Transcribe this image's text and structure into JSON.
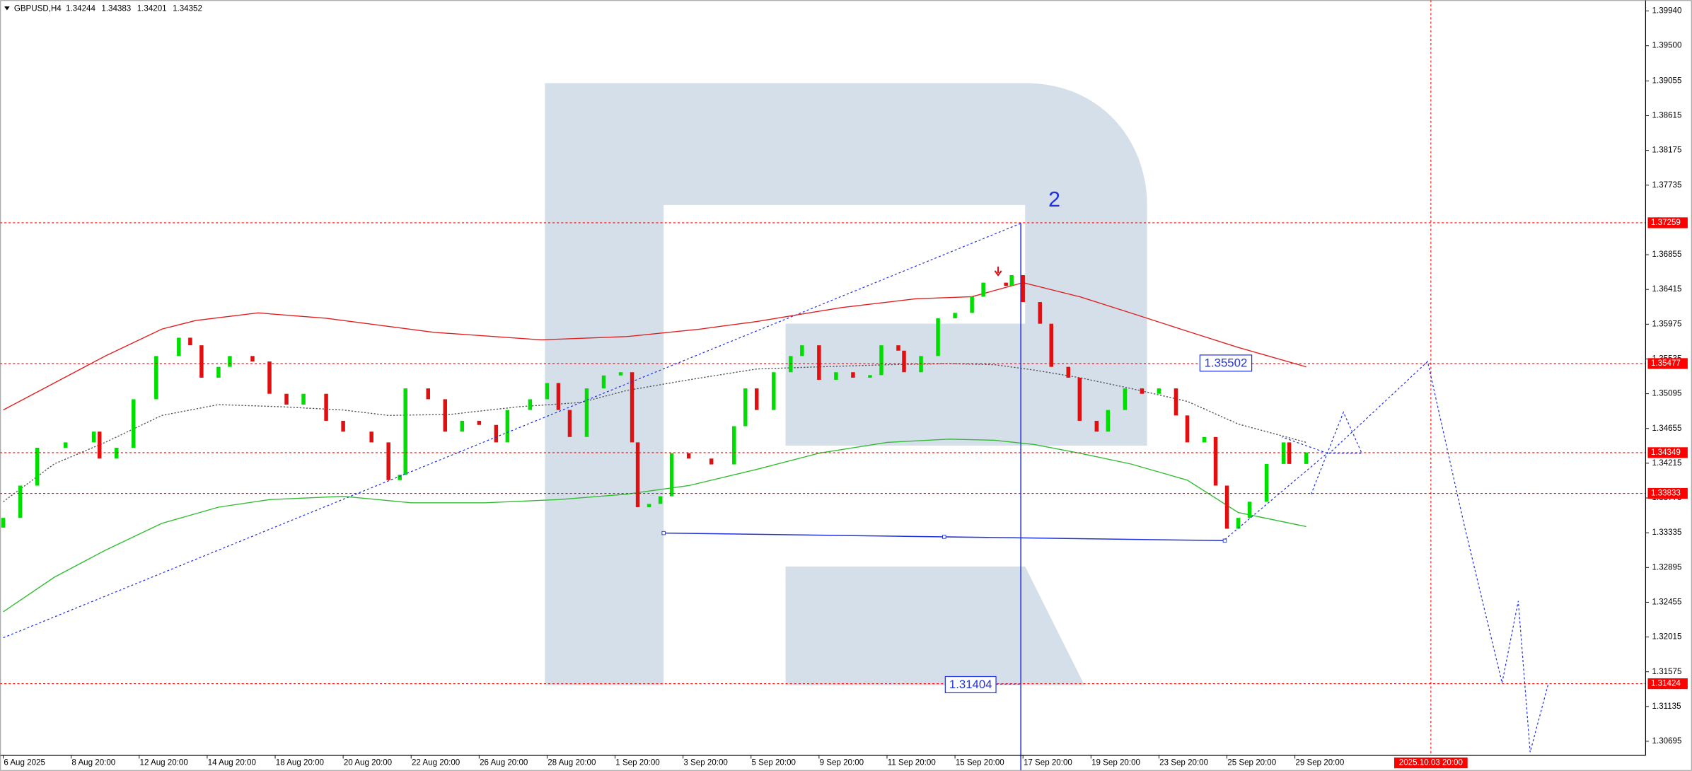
{
  "header": {
    "symbol": "GBPUSD,H4",
    "ohlc": [
      1.34244,
      1.34383,
      1.34201,
      1.34352
    ]
  },
  "chart_data": {
    "type": "candlestick",
    "x": [
      0,
      3,
      6,
      11,
      16,
      17,
      20,
      23,
      27,
      31,
      33,
      35,
      38,
      40,
      44,
      47,
      50,
      53,
      57,
      60,
      65,
      68,
      70,
      71,
      75,
      78,
      81,
      84,
      87,
      89,
      93,
      96,
      98,
      100,
      103,
      106,
      109,
      111,
      112,
      114,
      116,
      118,
      121,
      125,
      129,
      131,
      133,
      136,
      139,
      141,
      144,
      147,
      150,
      153,
      155,
      158,
      159,
      162,
      165,
      168,
      171,
      173,
      177,
      178,
      180,
      183,
      185,
      188,
      190,
      193,
      195,
      198,
      201,
      204,
      207,
      209,
      212,
      214,
      216,
      218,
      220,
      223,
      226,
      227,
      230
    ],
    "open": [
      1.334,
      1.33523,
      1.33932,
      1.34411,
      1.34479,
      1.34615,
      1.34274,
      1.34411,
      1.35025,
      1.35572,
      1.35804,
      1.35708,
      1.35298,
      1.35435,
      1.35572,
      1.35503,
      1.35094,
      1.34957,
      1.35094,
      1.34752,
      1.34615,
      1.34479,
      1.34001,
      1.34069,
      1.35162,
      1.35025,
      1.34615,
      1.34752,
      1.347,
      1.34479,
      1.34889,
      1.35025,
      1.3523,
      1.34889,
      1.34547,
      1.35162,
      1.35326,
      1.35367,
      1.34479,
      1.33659,
      1.337,
      1.33796,
      1.34342,
      1.34274,
      1.342,
      1.34684,
      1.35162,
      1.34889,
      1.35367,
      1.35572,
      1.35708,
      1.35271,
      1.35367,
      1.35298,
      1.3533,
      1.35708,
      1.3564,
      1.35367,
      1.35572,
      1.3605,
      1.36118,
      1.36323,
      1.36501,
      1.3646,
      1.36596,
      1.36255,
      1.35981,
      1.35435,
      1.35298,
      1.34752,
      1.34615,
      1.34889,
      1.35162,
      1.35094,
      1.35162,
      1.3482,
      1.34479,
      1.34547,
      1.33932,
      1.33386,
      1.33523,
      1.33728,
      1.34206,
      1.34479,
      1.34206
    ],
    "close": [
      1.33523,
      1.33932,
      1.34411,
      1.34479,
      1.34615,
      1.34274,
      1.34411,
      1.35025,
      1.35572,
      1.35804,
      1.35708,
      1.35298,
      1.35435,
      1.35572,
      1.35503,
      1.35094,
      1.34957,
      1.35094,
      1.34752,
      1.34615,
      1.34479,
      1.34001,
      1.34069,
      1.35162,
      1.35025,
      1.34615,
      1.34752,
      1.347,
      1.34479,
      1.34889,
      1.35025,
      1.3523,
      1.34889,
      1.34547,
      1.35162,
      1.35326,
      1.35367,
      1.34479,
      1.33659,
      1.337,
      1.33796,
      1.34342,
      1.34274,
      1.342,
      1.34684,
      1.35162,
      1.34889,
      1.35367,
      1.35572,
      1.35708,
      1.35271,
      1.35367,
      1.35298,
      1.3533,
      1.35708,
      1.3564,
      1.35367,
      1.35572,
      1.3605,
      1.36118,
      1.36323,
      1.36501,
      1.3646,
      1.36596,
      1.36255,
      1.35981,
      1.35435,
      1.35298,
      1.34752,
      1.34615,
      1.34889,
      1.35162,
      1.35094,
      1.35162,
      1.3482,
      1.34479,
      1.34547,
      1.33932,
      1.33386,
      1.33523,
      1.33728,
      1.34206,
      1.34479,
      1.34206,
      1.34352
    ],
    "up_color": "#00dd00",
    "down_color": "#e01010",
    "overlays": [
      {
        "color": "#e02020",
        "style": "solid",
        "x": [
          0,
          9,
          18,
          28,
          34,
          45,
          57,
          76,
          95,
          110,
          123,
          133,
          148,
          161,
          171,
          180,
          190,
          199,
          209,
          218,
          230
        ],
        "values": [
          1.34889,
          1.3523,
          1.35572,
          1.35913,
          1.36022,
          1.36118,
          1.3605,
          1.35872,
          1.35777,
          1.35818,
          1.35913,
          1.36009,
          1.36186,
          1.36296,
          1.36323,
          1.36501,
          1.36323,
          1.36118,
          1.35886,
          1.35681,
          1.35435
        ]
      },
      {
        "color": "#33bb33",
        "style": "solid",
        "x": [
          0,
          9,
          18,
          28,
          38,
          47,
          60,
          72,
          85,
          98,
          110,
          121,
          133,
          144,
          156,
          167,
          175,
          182,
          190,
          199,
          209,
          218,
          230
        ],
        "values": [
          1.32334,
          1.32771,
          1.33113,
          1.33454,
          1.33659,
          1.33755,
          1.33796,
          1.33714,
          1.33714,
          1.33755,
          1.33823,
          1.33932,
          1.34137,
          1.34342,
          1.34479,
          1.3452,
          1.34506,
          1.34452,
          1.34342,
          1.34206,
          1.34001,
          1.33591,
          1.33413
        ]
      },
      {
        "color": "#555555",
        "style": "dotted",
        "x": [
          0,
          9,
          18,
          28,
          38,
          49,
          60,
          68,
          79,
          91,
          102,
          110,
          121,
          133,
          144,
          156,
          167,
          175,
          182,
          190,
          199,
          209,
          218,
          230
        ],
        "values": [
          1.33728,
          1.34206,
          1.34479,
          1.3482,
          1.34957,
          1.3493,
          1.34889,
          1.3482,
          1.34834,
          1.3493,
          1.34984,
          1.35135,
          1.35271,
          1.35408,
          1.35435,
          1.35462,
          1.35476,
          1.35462,
          1.35394,
          1.35298,
          1.35162,
          1.34998,
          1.34711,
          1.34479
        ]
      }
    ],
    "levels": [
      1.37259,
      1.35477,
      1.34349,
      1.33833,
      1.31424
    ],
    "level_color": "#ff0000",
    "xlim": [
      -0.57,
      289.9
    ],
    "ylim": [
      1.30517,
      1.40079
    ],
    "yticks": [
      {
        "value": 1.3994,
        "label": "1.39940"
      },
      {
        "value": 1.395,
        "label": "1.39500"
      },
      1.39055,
      1.38615,
      1.38175,
      1.37735,
      1.36855,
      1.36415,
      1.35975,
      1.35535,
      1.35095,
      1.34655,
      1.34215,
      1.33775,
      1.33335,
      1.32895,
      1.32455,
      1.32015,
      1.31575,
      1.31135,
      1.30695
    ],
    "xticks": [
      {
        "value": 0,
        "label": "6 Aug 2025"
      },
      {
        "value": 12,
        "label": "8 Aug 20:00"
      },
      {
        "value": 24,
        "label": "12 Aug 20:00"
      },
      {
        "value": 36,
        "label": "14 Aug 20:00"
      },
      {
        "value": 48,
        "label": "18 Aug 20:00"
      },
      {
        "value": 60,
        "label": "20 Aug 20:00"
      },
      {
        "value": 72,
        "label": "22 Aug 20:00"
      },
      {
        "value": 84,
        "label": "26 Aug 20:00"
      },
      {
        "value": 96,
        "label": "28 Aug 20:00"
      },
      {
        "value": 108,
        "label": "1 Sep 20:00"
      },
      {
        "value": 120,
        "label": "3 Sep 20:00"
      },
      {
        "value": 132,
        "label": "5 Sep 20:00"
      },
      {
        "value": 144,
        "label": "9 Sep 20:00"
      },
      {
        "value": 156,
        "label": "11 Sep 20:00"
      },
      {
        "value": 168,
        "label": "15 Sep 20:00"
      },
      {
        "value": 180,
        "label": "17 Sep 20:00"
      },
      {
        "value": 192,
        "label": "19 Sep 20:00"
      },
      {
        "value": 204,
        "label": "23 Sep 20:00"
      },
      {
        "value": 216,
        "label": "25 Sep 20:00"
      },
      {
        "value": 228,
        "label": "29 Sep 20:00"
      }
    ],
    "marker_x": {
      "value": 252,
      "label": "2025.10.03 20:00"
    },
    "annotations": {
      "wave": "2",
      "targets": [
        1.35502,
        1.31404
      ]
    }
  }
}
